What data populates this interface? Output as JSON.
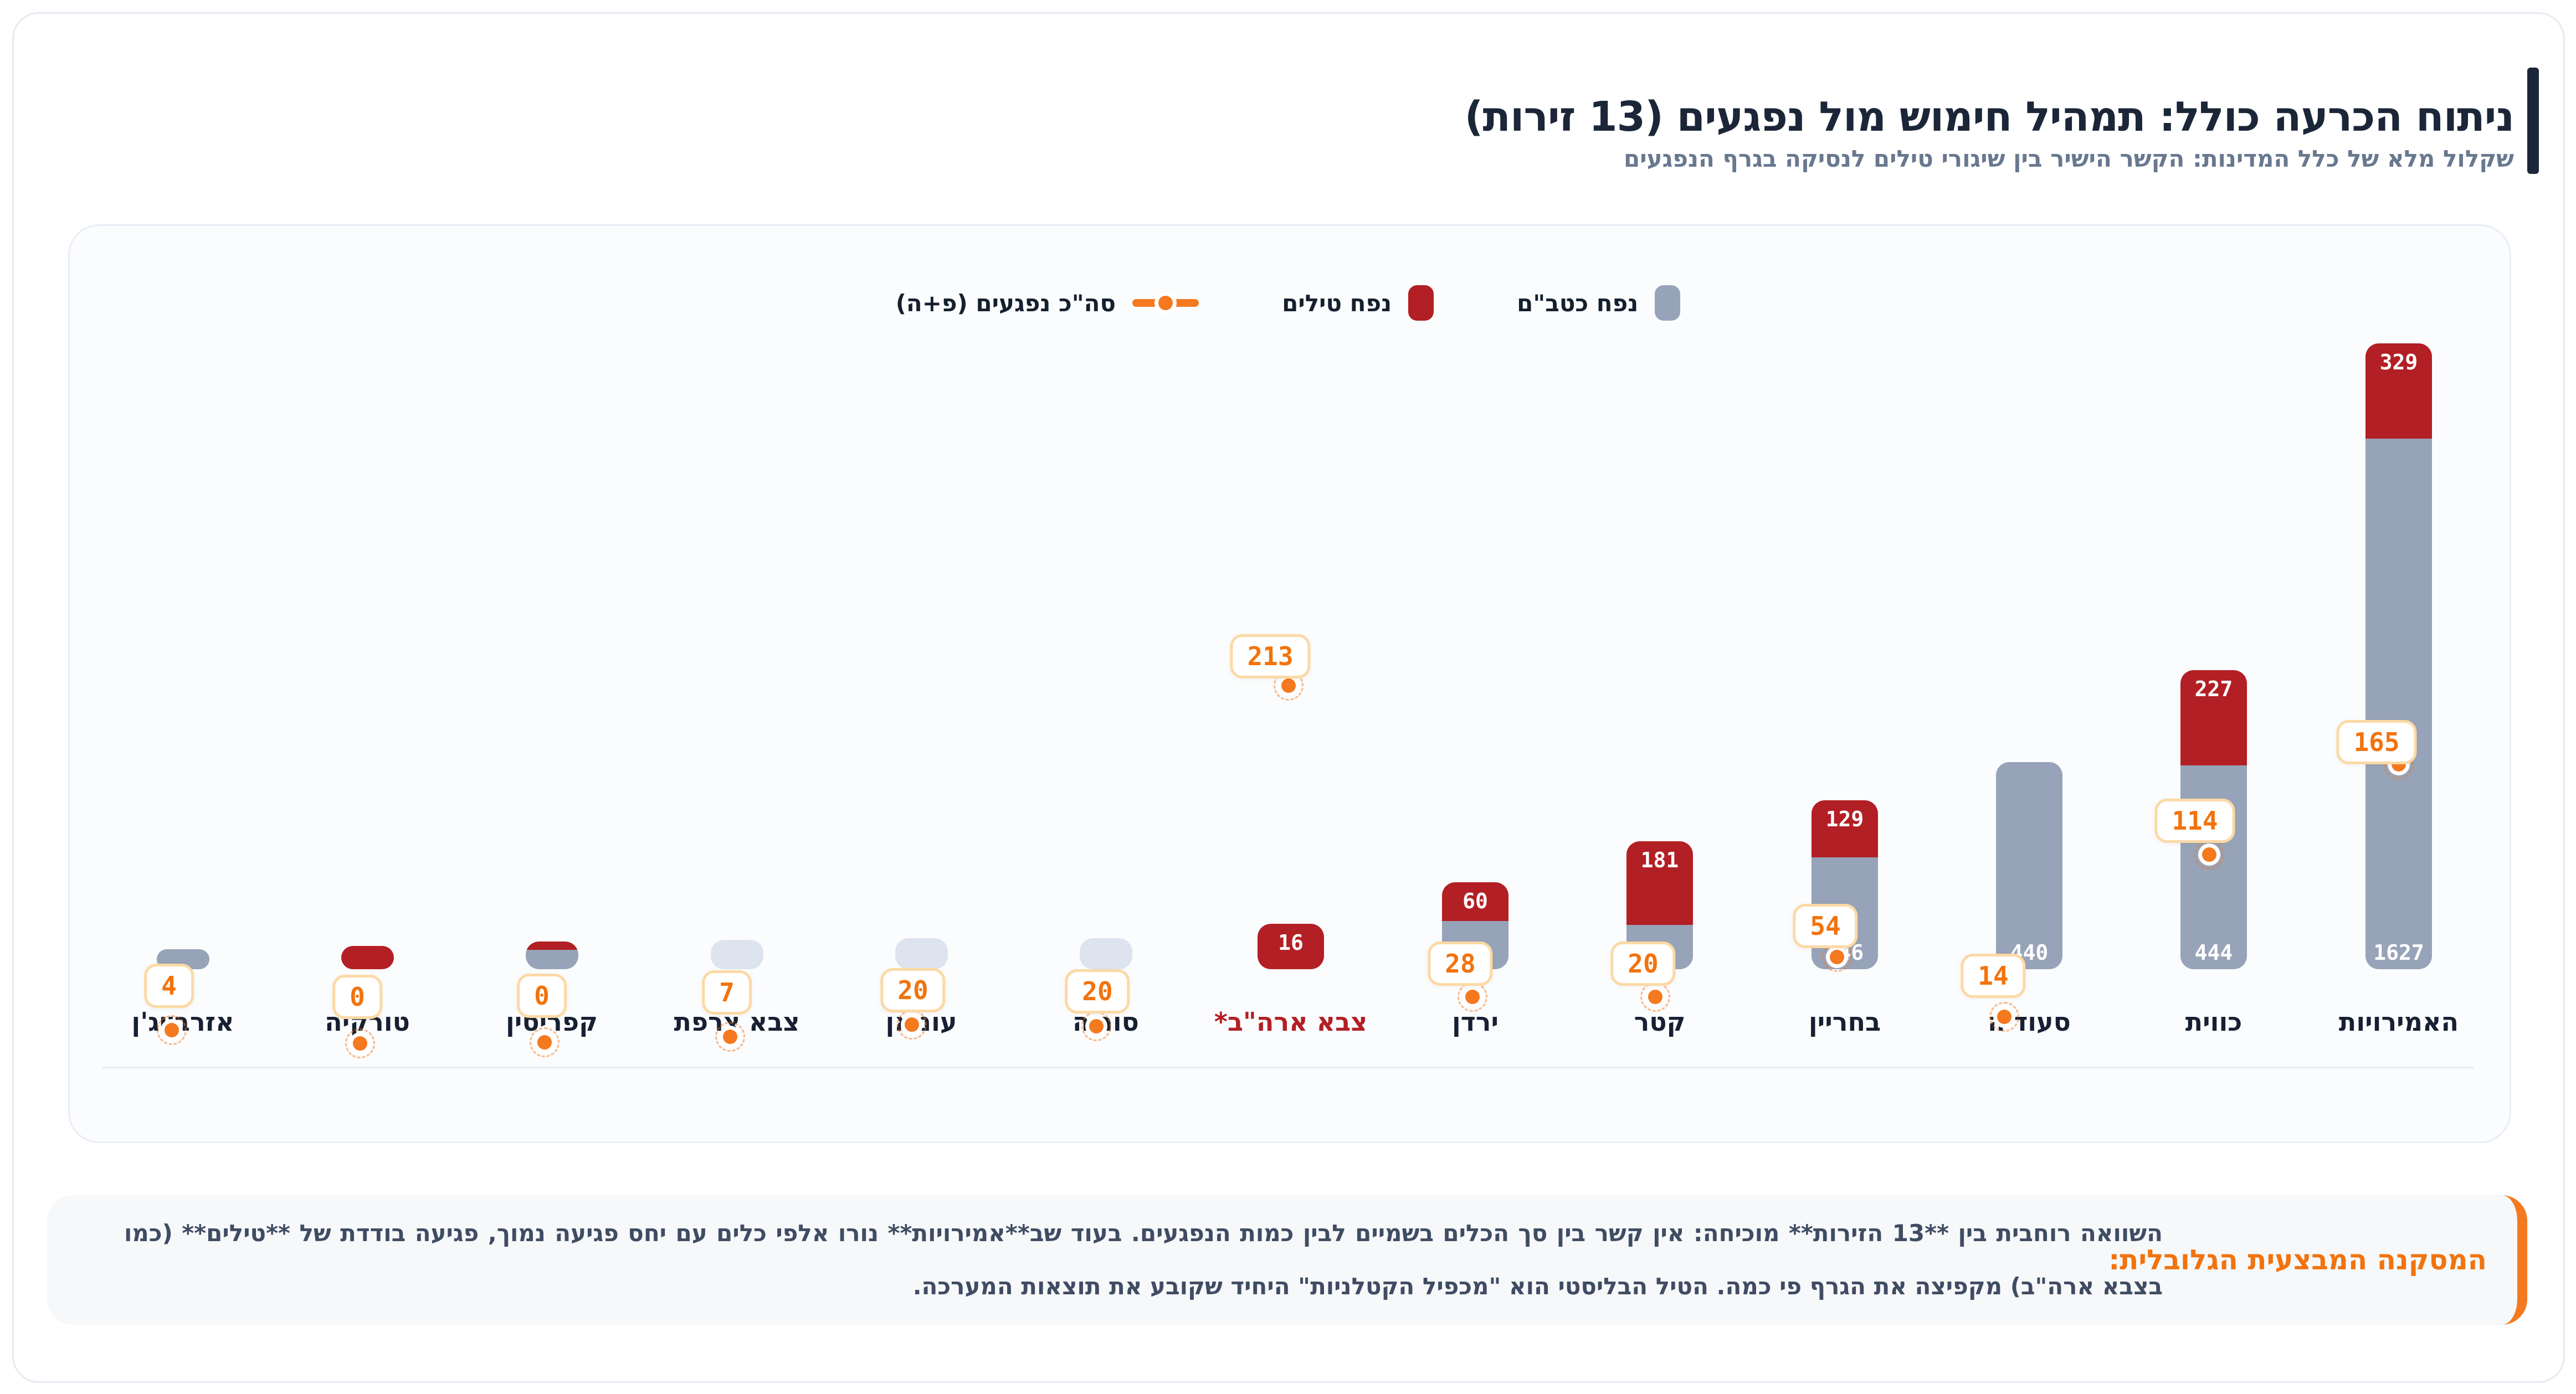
{
  "header": {
    "title": "ניתוח הכרעה כולל: תמהיל חימוש מול נפגעים (13 זירות)",
    "subtitle": "שקלול מלא של כלל המדינות: הקשר הישיר בין שיגורי טילים לנסיקה בגרף הנפגעים"
  },
  "legend": {
    "drones": "נפח כטב\"ם",
    "missiles": "נפח טילים",
    "casualties": "סה\"כ נפגעים (פ+ה)"
  },
  "colors": {
    "drones": "#97a3b8",
    "drones_faint": "#dde4ef",
    "missiles": "#b21f24",
    "casualties": "#f4791f",
    "navy": "#1b2638"
  },
  "chart_data": {
    "type": "bar",
    "stacked": true,
    "legend_position": "top-center",
    "direction": "rtl",
    "categories": [
      "האמירויות",
      "כווית",
      "סעודיה",
      "בחריין",
      "קטר",
      "ירדן",
      "צבא ארה\"ב*",
      "סוריה",
      "עומאן",
      "צבא צרפת",
      "קפריסין",
      "טורקיה",
      "אזרבייג'ן"
    ],
    "series": [
      {
        "name": "נפח כטב\"ם",
        "type": "bar",
        "color": "#97a3b8",
        "values": [
          1627,
          444,
          440,
          246,
          69,
          59,
          null,
          null,
          null,
          null,
          null,
          null,
          null
        ]
      },
      {
        "name": "נפח טילים",
        "type": "bar",
        "color": "#b21f24",
        "values": [
          329,
          227,
          null,
          129,
          181,
          60,
          16,
          null,
          null,
          null,
          null,
          null,
          null
        ]
      },
      {
        "name": "סה\"כ נפגעים (פ+ה)",
        "type": "scatter",
        "color": "#f4791f",
        "values": [
          165,
          114,
          14,
          54,
          20,
          28,
          213,
          20,
          20,
          7,
          0,
          0,
          4
        ]
      }
    ],
    "highlighted_category": "צבא ארה\"ב*"
  },
  "conclusion": {
    "label": "המסקנה המבצעית הגלובלית:",
    "text": "השוואה רוחבית בין **13 הזירות** מוכיחה: אין קשר בין סך הכלים בשמיים לבין כמות הנפגעים. בעוד שב**אמירויות** נורו אלפי כלים עם יחס פגיעה נמוך, פגיעה בודדת של **טילים** (כמו בצבא ארה\"ב) מקפיצה את הגרף פי כמה. הטיל הבליסטי הוא \"מכפיל הקטלניות\" היחיד שקובע את תוצאות המערכה."
  }
}
